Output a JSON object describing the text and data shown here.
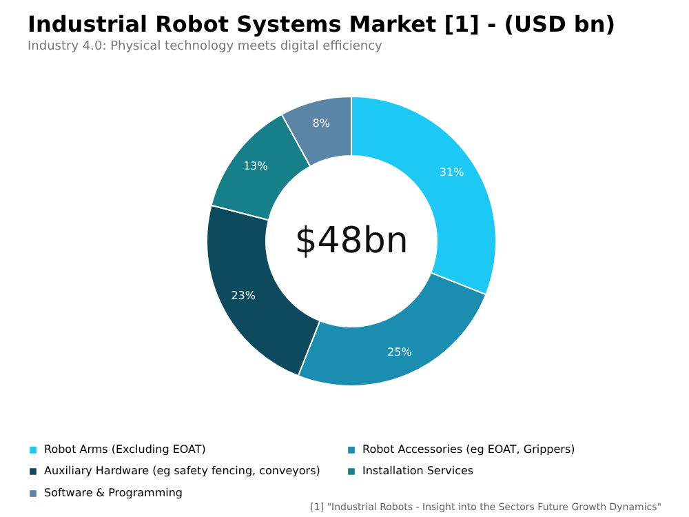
{
  "chart_data": {
    "type": "donut",
    "title": "Industrial Robot Systems Market [1] - (USD bn)",
    "subtitle": "Industry 4.0: Physical technology meets digital efficiency",
    "categories": [
      "Robot Arms (Excluding EOAT)",
      "Robot Accessories (eg EOAT, Grippers)",
      "Auxiliary Hardware (eg safety fencing, conveyors)",
      "Installation Services",
      "Software & Programming"
    ],
    "values": [
      31,
      25,
      23,
      13,
      8
    ],
    "colors": [
      "#1ec8f5",
      "#1a8db0",
      "#0d4a5e",
      "#177f8a",
      "#5a85a6"
    ],
    "value_labels": [
      "31%",
      "25%",
      "23%",
      "13%",
      "8%"
    ],
    "annotations": [
      "$48bn",
      "[1] \"Industrial Robots - Insight into the Sectors Future Growth Dynamics\""
    ],
    "legend": "bottom"
  }
}
